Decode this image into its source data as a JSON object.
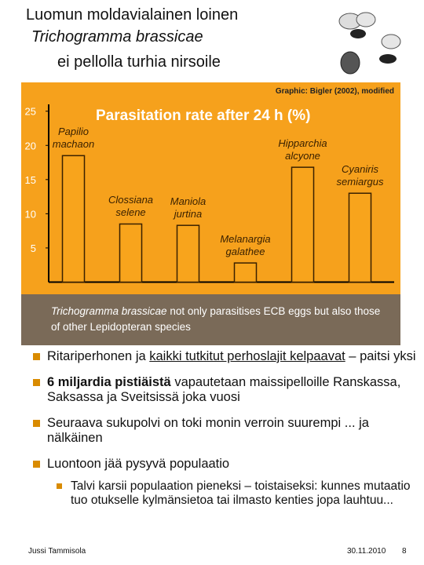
{
  "header": {
    "title": [
      "Luomun moldavialainen loinen",
      "Trichogramma brassicae",
      "ei pellolla turhia nirsoile"
    ]
  },
  "chart_data": {
    "type": "bar",
    "title": "Parasitation rate after 24 h (%)",
    "subtitle": "Graphic: Bigler (2002), modified",
    "categories": [
      "Papilio machaon",
      "Clossiana selene",
      "Maniola jurtina",
      "Melanargia galathee",
      "Hipparchia alcyone",
      "Cyaniris semiargus"
    ],
    "values": [
      18.5,
      8.5,
      8.3,
      2.8,
      16.8,
      13
    ],
    "color": "#f8a41c",
    "ylim": [
      0,
      26
    ],
    "yticks": [
      5,
      10,
      15,
      20,
      25
    ],
    "caption": {
      "species": "Trichogramma brassicae",
      "text": "not only parasitises ECB eggs but also those of other Lepidopteran species"
    }
  },
  "bullets": [
    [
      "Ritariperhonen ja ",
      "kaikki tutkitut perhoslajit kelpaavat",
      " – paitsi yksi"
    ],
    [
      "6 miljardia pistiäistä",
      " vapautetaan maissipelloille Ranskassa, Saksassa ja Sveitsissä joka vuosi"
    ],
    [
      "Seuraava sukupolvi on toki monin verroin suurempi ... ja nälkäinen"
    ],
    [
      "Luontoon jää pysyvä populaatio"
    ]
  ],
  "sub_bullet": "Talvi karsii populaation pieneksi – toistaiseksi: kunnes mutaatio tuo otukselle kylmänsietoa tai ilmasto kenties jopa lauhtuu...",
  "footer": {
    "author": "Jussi Tammisola",
    "date": "30.11.2010",
    "page": "8"
  }
}
